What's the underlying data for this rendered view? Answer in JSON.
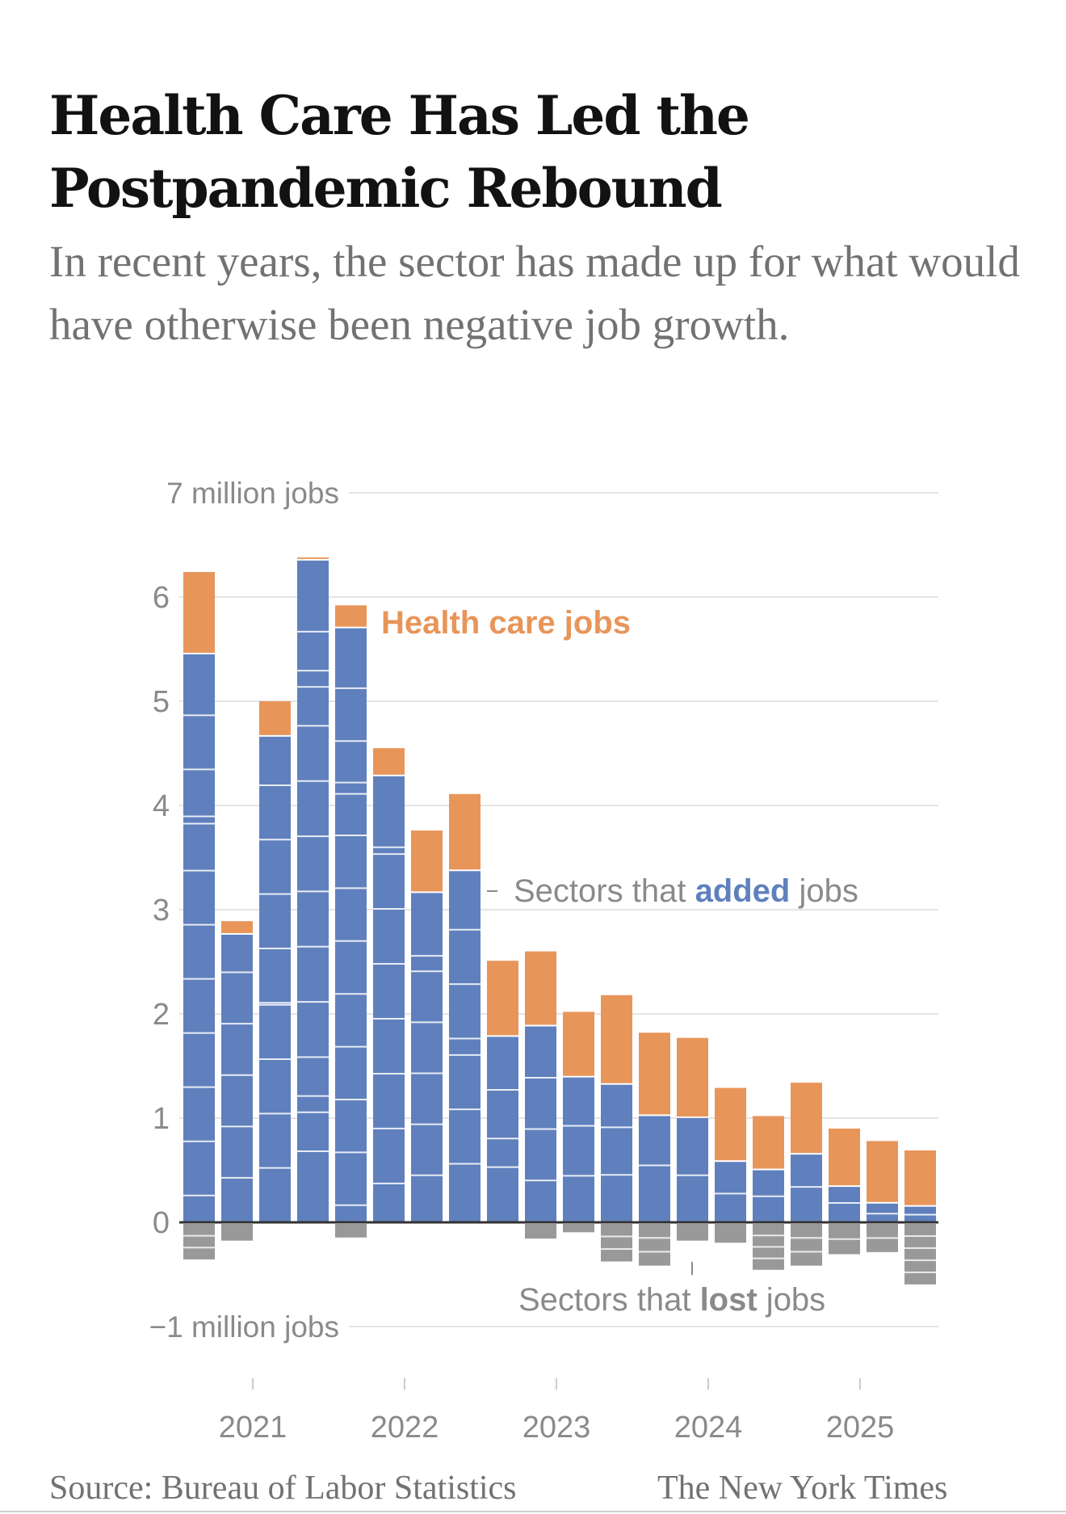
{
  "header": {
    "title": "Health Care Has Led the Postpandemic Rebound",
    "subtitle": "In recent years, the sector has made up for what would have otherwise been negative job growth."
  },
  "footer": {
    "source": "Source: Bureau of Labor Statistics",
    "credit": "The New York Times"
  },
  "colors": {
    "health_care": "#e8955a",
    "added": "#6080bd",
    "lost": "#999999",
    "zero_line": "#333333",
    "grid": "#e4e4e4"
  },
  "chart_data": {
    "type": "bar",
    "stacked": true,
    "title": "Health Care Has Led the Postpandemic Rebound",
    "xlabel": "",
    "ylabel": "million jobs",
    "ylim": [
      -1,
      7
    ],
    "yticks": [
      {
        "value": 7,
        "label": "7 million jobs"
      },
      {
        "value": 6,
        "label": "6"
      },
      {
        "value": 5,
        "label": "5"
      },
      {
        "value": 4,
        "label": "4"
      },
      {
        "value": 3,
        "label": "3"
      },
      {
        "value": 2,
        "label": "2"
      },
      {
        "value": 1,
        "label": "1"
      },
      {
        "value": 0,
        "label": "0"
      },
      {
        "value": -1,
        "label": "−1 million jobs"
      }
    ],
    "xticks": [
      {
        "index": 1.5,
        "label": "2021"
      },
      {
        "index": 5.5,
        "label": "2022"
      },
      {
        "index": 9.5,
        "label": "2023"
      },
      {
        "index": 13.5,
        "label": "2024"
      },
      {
        "index": 17.5,
        "label": "2025"
      }
    ],
    "grid": true,
    "annotations": {
      "health_care": "Health care jobs",
      "added_prefix": "Sectors that ",
      "added_bold": "added",
      "added_suffix": " jobs",
      "lost_prefix": "Sectors that ",
      "lost_bold": "lost",
      "lost_suffix": " jobs"
    },
    "series": [
      {
        "name": "Sectors that added jobs",
        "values": [
          5.45,
          2.76,
          4.66,
          6.35,
          5.7,
          4.28,
          3.16,
          3.37,
          1.78,
          1.88,
          1.39,
          1.32,
          1.02,
          1.0,
          0.58,
          0.5,
          0.65,
          0.34,
          0.18,
          0.15
        ]
      },
      {
        "name": "Health care jobs",
        "values": [
          0.79,
          0.13,
          0.34,
          0.03,
          0.22,
          0.27,
          0.6,
          0.74,
          0.73,
          0.72,
          0.63,
          0.86,
          0.8,
          0.77,
          0.71,
          0.52,
          0.69,
          0.56,
          0.6,
          0.54
        ]
      },
      {
        "name": "Sectors that lost jobs",
        "values": [
          -0.34,
          -0.16,
          0,
          0,
          -0.13,
          0,
          0,
          0,
          0,
          -0.14,
          -0.08,
          -0.36,
          -0.4,
          -0.16,
          -0.18,
          -0.44,
          -0.4,
          -0.29,
          -0.27,
          -0.58
        ]
      }
    ]
  }
}
